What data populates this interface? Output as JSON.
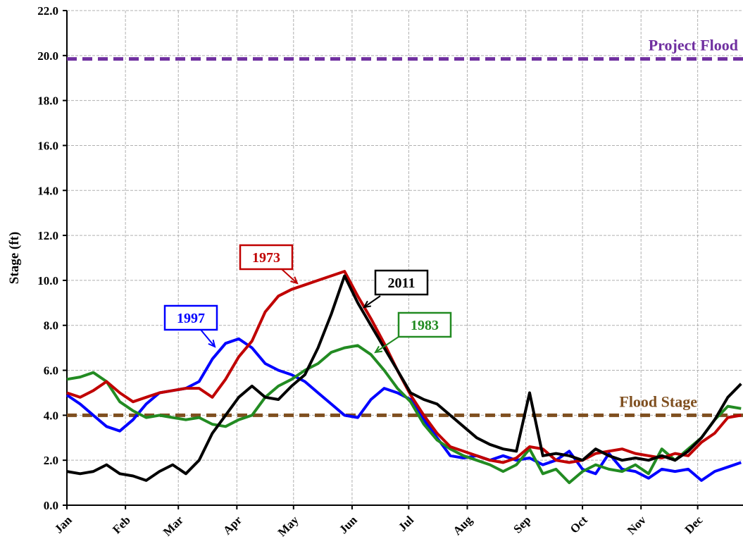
{
  "chart_data": {
    "type": "line",
    "y_label": "Stage (ft)",
    "xlim": [
      0,
      358
    ],
    "xticks": [
      {
        "value": 0,
        "label": "Jan"
      },
      {
        "value": 31,
        "label": "Feb"
      },
      {
        "value": 59,
        "label": "Mar"
      },
      {
        "value": 90,
        "label": "Apr"
      },
      {
        "value": 120,
        "label": "May"
      },
      {
        "value": 151,
        "label": "Jun"
      },
      {
        "value": 181,
        "label": "Jul"
      },
      {
        "value": 212,
        "label": "Aug"
      },
      {
        "value": 243,
        "label": "Sep"
      },
      {
        "value": 273,
        "label": "Oct"
      },
      {
        "value": 304,
        "label": "Nov"
      },
      {
        "value": 334,
        "label": "Dec"
      }
    ],
    "ylim": [
      0,
      22
    ],
    "yticks": [
      {
        "value": 0,
        "label": "0.0"
      },
      {
        "value": 2,
        "label": "2.0"
      },
      {
        "value": 4,
        "label": "4.0"
      },
      {
        "value": 6,
        "label": "6.0"
      },
      {
        "value": 8,
        "label": "8.0"
      },
      {
        "value": 10,
        "label": "10.0"
      },
      {
        "value": 12,
        "label": "12.0"
      },
      {
        "value": 14,
        "label": "14.0"
      },
      {
        "value": 16,
        "label": "16.0"
      },
      {
        "value": 18,
        "label": "18.0"
      },
      {
        "value": 20,
        "label": "20.0"
      },
      {
        "value": 22,
        "label": "22.0"
      }
    ],
    "grid": true,
    "reference_lines": [
      {
        "label": "Project Flood",
        "value": 19.85,
        "color": "#7030a0"
      },
      {
        "label": "Flood Stage",
        "value": 4.0,
        "color": "#7f4f1f"
      }
    ],
    "x": [
      0,
      7,
      14,
      21,
      28,
      35,
      42,
      49,
      56,
      63,
      70,
      77,
      84,
      91,
      98,
      105,
      112,
      119,
      126,
      133,
      140,
      147,
      154,
      161,
      168,
      175,
      182,
      189,
      196,
      203,
      210,
      217,
      224,
      231,
      238,
      245,
      252,
      259,
      266,
      273,
      280,
      287,
      294,
      301,
      308,
      315,
      322,
      329,
      336,
      343,
      350,
      357
    ],
    "series": [
      {
        "name": "1997",
        "color": "#0000ff",
        "values": [
          4.9,
          4.5,
          4.0,
          3.5,
          3.3,
          3.8,
          4.5,
          5.0,
          5.1,
          5.2,
          5.5,
          6.5,
          7.2,
          7.4,
          7.0,
          6.3,
          6.0,
          5.8,
          5.5,
          5.0,
          4.5,
          4.0,
          3.9,
          4.7,
          5.2,
          5.0,
          4.7,
          3.8,
          3.0,
          2.2,
          2.1,
          2.2,
          2.0,
          2.2,
          2.0,
          2.1,
          1.8,
          2.0,
          2.4,
          1.6,
          1.4,
          2.3,
          1.6,
          1.5,
          1.2,
          1.6,
          1.5,
          1.6,
          1.1,
          1.5,
          1.7,
          1.9
        ]
      },
      {
        "name": "1983",
        "color": "#228b22",
        "values": [
          5.6,
          5.7,
          5.9,
          5.5,
          4.6,
          4.2,
          3.9,
          4.0,
          3.9,
          3.8,
          3.9,
          3.6,
          3.5,
          3.8,
          4.0,
          4.8,
          5.3,
          5.6,
          6.0,
          6.3,
          6.8,
          7.0,
          7.1,
          6.7,
          6.0,
          5.2,
          4.6,
          3.6,
          2.9,
          2.5,
          2.2,
          2.0,
          1.8,
          1.5,
          1.8,
          2.5,
          1.4,
          1.6,
          1.0,
          1.5,
          1.8,
          1.6,
          1.5,
          1.8,
          1.4,
          2.5,
          2.0,
          2.5,
          3.0,
          3.8,
          4.4,
          4.3
        ]
      },
      {
        "name": "1973",
        "color": "#c00000",
        "values": [
          5.0,
          4.8,
          5.1,
          5.5,
          5.0,
          4.6,
          4.8,
          5.0,
          5.1,
          5.2,
          5.2,
          4.8,
          5.6,
          6.6,
          7.3,
          8.6,
          9.3,
          9.6,
          9.8,
          10.0,
          10.2,
          10.4,
          9.3,
          8.3,
          7.2,
          6.0,
          4.9,
          4.0,
          3.2,
          2.6,
          2.4,
          2.2,
          2.0,
          1.9,
          2.1,
          2.6,
          2.5,
          2.0,
          1.9,
          2.0,
          2.3,
          2.4,
          2.5,
          2.3,
          2.2,
          2.1,
          2.3,
          2.2,
          2.8,
          3.2,
          3.9,
          4.0
        ]
      },
      {
        "name": "2011",
        "color": "#000000",
        "values": [
          1.5,
          1.4,
          1.5,
          1.8,
          1.4,
          1.3,
          1.1,
          1.5,
          1.8,
          1.4,
          2.0,
          3.2,
          4.0,
          4.8,
          5.3,
          4.8,
          4.7,
          5.3,
          5.8,
          7.0,
          8.5,
          10.2,
          9.0,
          8.0,
          7.0,
          6.0,
          5.0,
          4.7,
          4.5,
          4.0,
          3.5,
          3.0,
          2.7,
          2.5,
          2.4,
          5.0,
          2.2,
          2.3,
          2.2,
          2.0,
          2.5,
          2.2,
          2.0,
          2.1,
          2.0,
          2.2,
          2.0,
          2.4,
          3.0,
          3.8,
          4.8,
          5.4
        ]
      }
    ]
  }
}
